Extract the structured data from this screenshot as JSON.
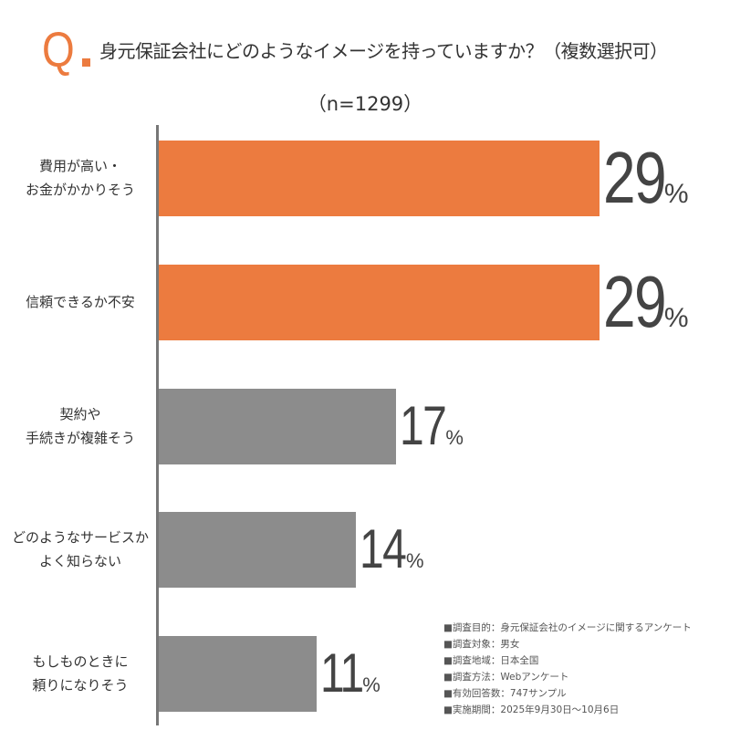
{
  "header": {
    "q_mark": "Q",
    "title": "身元保証会社にどのようなイメージを持っていますか？（複数選択可）",
    "sample": "（n=1299）"
  },
  "chart_data": {
    "type": "bar",
    "orientation": "horizontal",
    "unit": "%",
    "categories": [
      "費用が高い・\nお金がかかりそう",
      "信頼できるか不安",
      "契約や\n手続きが複雑そう",
      "どのようなサービスか\nよく知らない",
      "もしものときに\n頼りになりそう"
    ],
    "values": [
      29,
      29,
      17,
      14,
      11
    ],
    "value_labels": [
      "29",
      "29",
      "17",
      "14",
      "11"
    ],
    "colors": [
      "#ec7b3f",
      "#ec7b3f",
      "#8c8c8c",
      "#8c8c8c",
      "#8c8c8c"
    ]
  },
  "notes": [
    "■調査目的：身元保証会社のイメージに関するアンケート",
    "■調査対象：男女",
    "■調査地域：日本全国",
    "■調査方法：Webアンケート",
    "■有効回答数：747サンプル",
    "■実施期間：2025年9月30日～10月6日"
  ]
}
